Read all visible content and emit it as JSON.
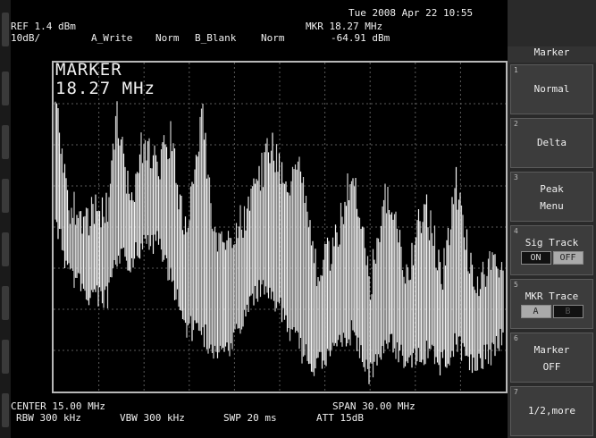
{
  "header": {
    "datetime": "Tue 2008 Apr 22 10:55",
    "ref_level": "REF 1.4 dBm",
    "marker_freq": "MKR 18.27 MHz",
    "scale": "10dB/",
    "trace_a": "A_Write",
    "trace_a_mode": "Norm",
    "trace_b": "B_Blank",
    "trace_b_mode": "Norm",
    "marker_level": "-64.91 dBm"
  },
  "marker_readout": {
    "label": "MARKER",
    "value": "18.27 MHz"
  },
  "footer": {
    "center": "CENTER 15.00 MHz",
    "span": "SPAN 30.00 MHz",
    "rbw": "RBW 300 kHz",
    "vbw": "VBW 300 kHz",
    "swp": "SWP 20 ms",
    "att": "ATT 15dB"
  },
  "softkeys": {
    "title": "Marker",
    "keys": [
      {
        "num": "1",
        "label": "Normal"
      },
      {
        "num": "2",
        "label": "Delta"
      },
      {
        "num": "3",
        "label1": "Peak",
        "label2": "Menu"
      },
      {
        "num": "4",
        "label": "Sig Track",
        "opt1": "ON",
        "opt2": "OFF"
      },
      {
        "num": "5",
        "label": "MKR Trace",
        "opt1": "A",
        "opt2": "B"
      },
      {
        "num": "6",
        "label1": "Marker",
        "label2": "OFF"
      },
      {
        "num": "7",
        "label": "1/2,more"
      }
    ]
  }
}
